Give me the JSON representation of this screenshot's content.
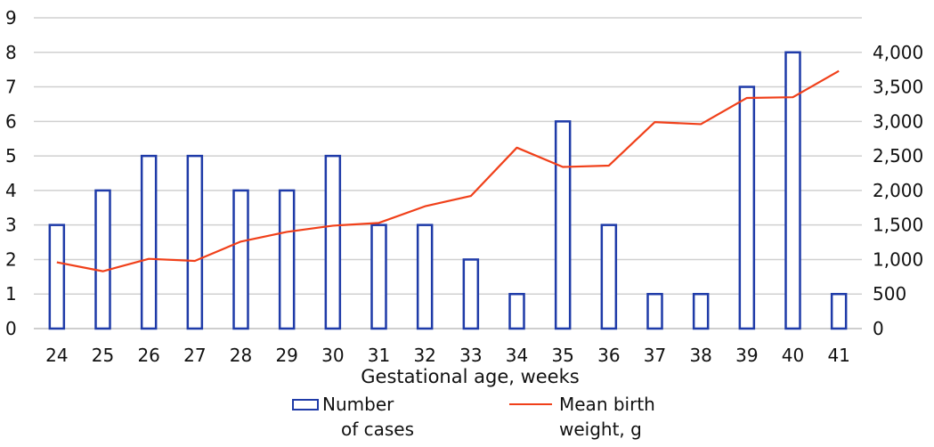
{
  "chart_data": {
    "type": "bar",
    "title": "",
    "xlabel": "Gestational age, weeks",
    "ylabel_left": "",
    "ylabel_right": "",
    "categories": [
      "24",
      "25",
      "26",
      "27",
      "28",
      "29",
      "30",
      "31",
      "32",
      "33",
      "34",
      "35",
      "36",
      "37",
      "38",
      "39",
      "40",
      "41"
    ],
    "ylim_left": [
      0,
      9
    ],
    "yticks_left": [
      "0",
      "1",
      "2",
      "3",
      "4",
      "5",
      "6",
      "7",
      "8",
      "9"
    ],
    "ylim_right": [
      0,
      4500
    ],
    "yticks_right": [
      "0",
      "500",
      "1,000",
      "1,500",
      "2,000",
      "2,500",
      "3,000",
      "3,500",
      "4,000"
    ],
    "grid": true,
    "legend_position": "bottom",
    "series": [
      {
        "name_lines": [
          "Number",
          "of cases"
        ],
        "type": "bar",
        "axis": "left",
        "color": "#1F3BA8",
        "values": [
          3,
          4,
          5,
          5,
          4,
          4,
          5,
          3,
          3,
          2,
          1,
          6,
          3,
          1,
          1,
          7,
          8,
          1
        ]
      },
      {
        "name_lines": [
          "Mean birth",
          "weight, g"
        ],
        "type": "line",
        "axis": "right",
        "color": "#F0401A",
        "values": [
          960,
          830,
          1010,
          980,
          1260,
          1400,
          1490,
          1530,
          1770,
          1920,
          2620,
          2340,
          2360,
          2990,
          2960,
          3340,
          3350,
          3730
        ]
      }
    ]
  }
}
